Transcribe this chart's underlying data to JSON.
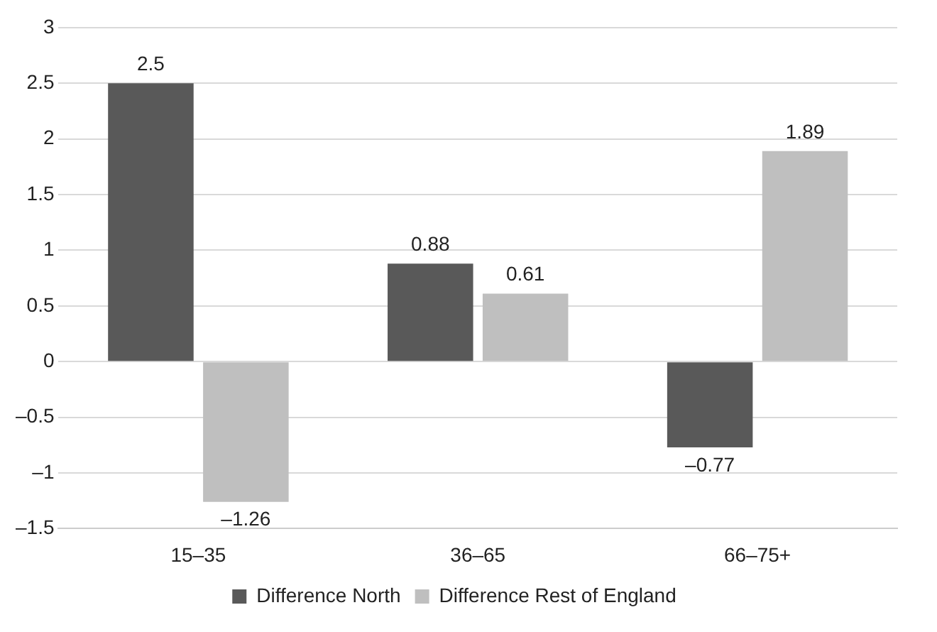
{
  "chart_data": {
    "type": "bar",
    "categories": [
      "15–35",
      "36–65",
      "66–75+"
    ],
    "series": [
      {
        "name": "Difference North",
        "color": "#595959",
        "values": [
          2.5,
          0.88,
          -0.77
        ],
        "value_labels": [
          "2.5",
          "0.88",
          "–0.77"
        ]
      },
      {
        "name": "Difference Rest of England",
        "color": "#bfbfbf",
        "values": [
          -1.26,
          0.61,
          1.89
        ],
        "value_labels": [
          "–1.26",
          "0.61",
          "1.89"
        ]
      }
    ],
    "ylim": [
      -1.5,
      3
    ],
    "yticks": [
      {
        "value": -1.5,
        "label": "–1.5"
      },
      {
        "value": -1,
        "label": "–1"
      },
      {
        "value": -0.5,
        "label": "–0.5"
      },
      0,
      0.5,
      1,
      1.5,
      2,
      2.5,
      3
    ],
    "grid": "y",
    "legend": "bottom"
  }
}
